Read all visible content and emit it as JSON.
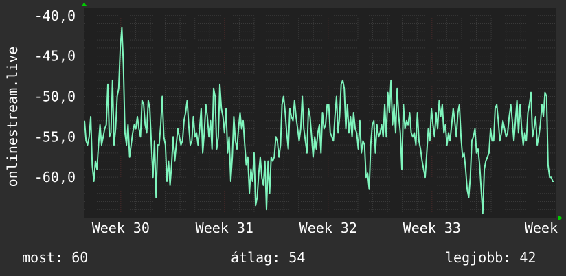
{
  "chart_data": {
    "type": "line",
    "ylabel": "onlinestream.live",
    "ylim": [
      -65,
      -39
    ],
    "y_ticks": [
      "-40,0",
      "-45,0",
      "-50,0",
      "-55,0",
      "-60,0"
    ],
    "y_tick_values": [
      -40,
      -45,
      -50,
      -55,
      -60
    ],
    "x_ticks": [
      "Week 30",
      "Week 31",
      "Week 32",
      "Week 33",
      "Week"
    ],
    "x_tick_positions": [
      30,
      31,
      32,
      33,
      34
    ],
    "xlim": [
      29.65,
      34.2
    ],
    "grid": true,
    "colors": {
      "background": "#2d2d2d",
      "plot_bg": "#202020",
      "line": "#7ff5bd",
      "grid": "#3a3a3a",
      "axis": "#ff2020",
      "arrow": "#00cc00",
      "text": "#ffffff"
    },
    "series": [
      {
        "x_start": 29.65,
        "x_end": 34.18,
        "values": [
          -53,
          -55.5,
          -56,
          -55,
          -52.5,
          -58.5,
          -60.5,
          -58,
          -59,
          -56,
          -53.5,
          -56,
          -55,
          -54,
          -53.5,
          -48.5,
          -55,
          -54.5,
          -48,
          -56,
          -54,
          -50,
          -49,
          -44,
          -41.5,
          -46,
          -54.5,
          -56,
          -53.5,
          -57.5,
          -56,
          -54.5,
          -53.5,
          -54,
          -52.5,
          -54,
          -55,
          -50.5,
          -51,
          -53.5,
          -54.5,
          -50.5,
          -51.5,
          -56,
          -60,
          -55.5,
          -62.5,
          -56,
          -56,
          -53.5,
          -50,
          -55,
          -56,
          -60.5,
          -58,
          -61,
          -58.5,
          -55,
          -58,
          -56,
          -54,
          -55,
          -56,
          -55.5,
          -53,
          -52,
          -50.5,
          -53.5,
          -56,
          -55.5,
          -52.5,
          -55,
          -54.5,
          -56,
          -54,
          -51.5,
          -57,
          -54.5,
          -51,
          -52.5,
          -55,
          -53,
          -56.5,
          -49,
          -50,
          -56.5,
          -55,
          -48.5,
          -51.5,
          -52.5,
          -54.5,
          -51.5,
          -57,
          -55,
          -60.5,
          -57.5,
          -52.5,
          -55.5,
          -56.5,
          -54,
          -52,
          -54,
          -53,
          -56,
          -58.5,
          -57.5,
          -62,
          -59,
          -60.5,
          -57,
          -63.5,
          -62.5,
          -59.5,
          -57.5,
          -60,
          -61,
          -58,
          -64,
          -58,
          -62,
          -57.5,
          -58,
          -57.5,
          -55,
          -55.5,
          -57.5,
          -56,
          -51,
          -50,
          -52,
          -54.5,
          -56.5,
          -51.5,
          -52.5,
          -53,
          -50.5,
          -52.5,
          -54,
          -55.5,
          -54,
          -50,
          -54,
          -55.5,
          -57,
          -51.5,
          -52.5,
          -55,
          -57.5,
          -55,
          -56.5,
          -54.5,
          -53.5,
          -57,
          -52,
          -54,
          -53.5,
          -51,
          -51,
          -54.5,
          -55,
          -55.5,
          -52.5,
          -50,
          -54.5,
          -52.5,
          -48.5,
          -48,
          -49,
          -54,
          -51,
          -54.5,
          -52.5,
          -55,
          -52,
          -54,
          -54.5,
          -56.5,
          -53,
          -57,
          -55.5,
          -56,
          -60,
          -59.5,
          -61.5,
          -56,
          -53.5,
          -53,
          -57,
          -53.5,
          -55,
          -54.5,
          -53.5,
          -55,
          -51,
          -55,
          -49.5,
          -52,
          -48,
          -53.5,
          -51,
          -54.5,
          -49,
          -52.5,
          -54.5,
          -59,
          -51,
          -54,
          -53,
          -53.5,
          -52,
          -54.5,
          -55,
          -54.5,
          -56,
          -52,
          -55.5,
          -56.5,
          -58,
          -59,
          -60,
          -57,
          -54,
          -55.5,
          -51.5,
          -53.5,
          -55,
          -52,
          -54,
          -50.5,
          -52.5,
          -51,
          -54.5,
          -53.5,
          -56,
          -54.5,
          -55.5,
          -53.5,
          -51.5,
          -53,
          -55,
          -52,
          -51,
          -55,
          -57.5,
          -57,
          -59,
          -61.5,
          -62.5,
          -60,
          -55.5,
          -55,
          -54,
          -57,
          -56.5,
          -58.5,
          -61.5,
          -64.5,
          -59,
          -58,
          -57.5,
          -57,
          -54,
          -55.5,
          -55.5,
          -51.5,
          -51,
          -53,
          -55.5,
          -54.5,
          -53,
          -54,
          -55,
          -54.5,
          -52.5,
          -51,
          -53,
          -55.5,
          -53,
          -50.5,
          -54.5,
          -51,
          -54,
          -56,
          -54.5,
          -55.5,
          -52,
          -51,
          -49.5,
          -55,
          -54,
          -52.5,
          -56,
          -55,
          -53.5,
          -51,
          -52.5,
          -49.5,
          -50,
          -58.5,
          -60,
          -60,
          -60.5,
          -60.5
        ]
      }
    ],
    "stats": {
      "last_label": "most:",
      "last_value": "60",
      "avg_label": "átlag:",
      "avg_value": "54",
      "best_label": "legjobb:",
      "best_value": "42"
    }
  }
}
